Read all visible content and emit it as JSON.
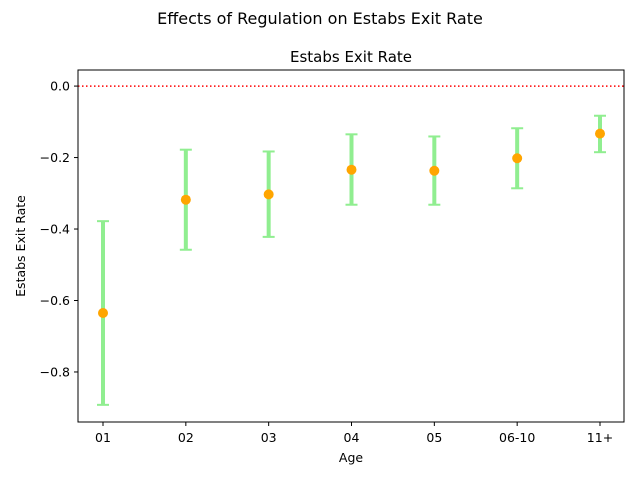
{
  "chart_data": {
    "type": "errorbar",
    "suptitle": "Effects of Regulation on Estabs Exit Rate",
    "title": "Estabs Exit Rate",
    "xlabel": "Age",
    "ylabel": "Estabs Exit Rate",
    "categories": [
      "01",
      "02",
      "03",
      "04",
      "05",
      "06-10",
      "11+"
    ],
    "values": [
      -0.635,
      -0.318,
      -0.303,
      -0.234,
      -0.237,
      -0.202,
      -0.133
    ],
    "lower": [
      -0.892,
      -0.458,
      -0.422,
      -0.332,
      -0.332,
      -0.286,
      -0.185
    ],
    "upper": [
      -0.378,
      -0.178,
      -0.183,
      -0.135,
      -0.141,
      -0.118,
      -0.083
    ],
    "ylim": [
      -0.94,
      0.045
    ],
    "yticks": [
      0.0,
      -0.2,
      -0.4,
      -0.6,
      -0.8
    ],
    "ytick_labels": [
      "0.0",
      "−0.2",
      "−0.4",
      "−0.6",
      "−0.8"
    ],
    "reference_line": {
      "y": 0.0,
      "style": "dotted",
      "color": "#ff0000"
    },
    "marker_color": "#ffa500",
    "errorbar_color": "#90ee90",
    "grid": false,
    "legend": "none"
  }
}
